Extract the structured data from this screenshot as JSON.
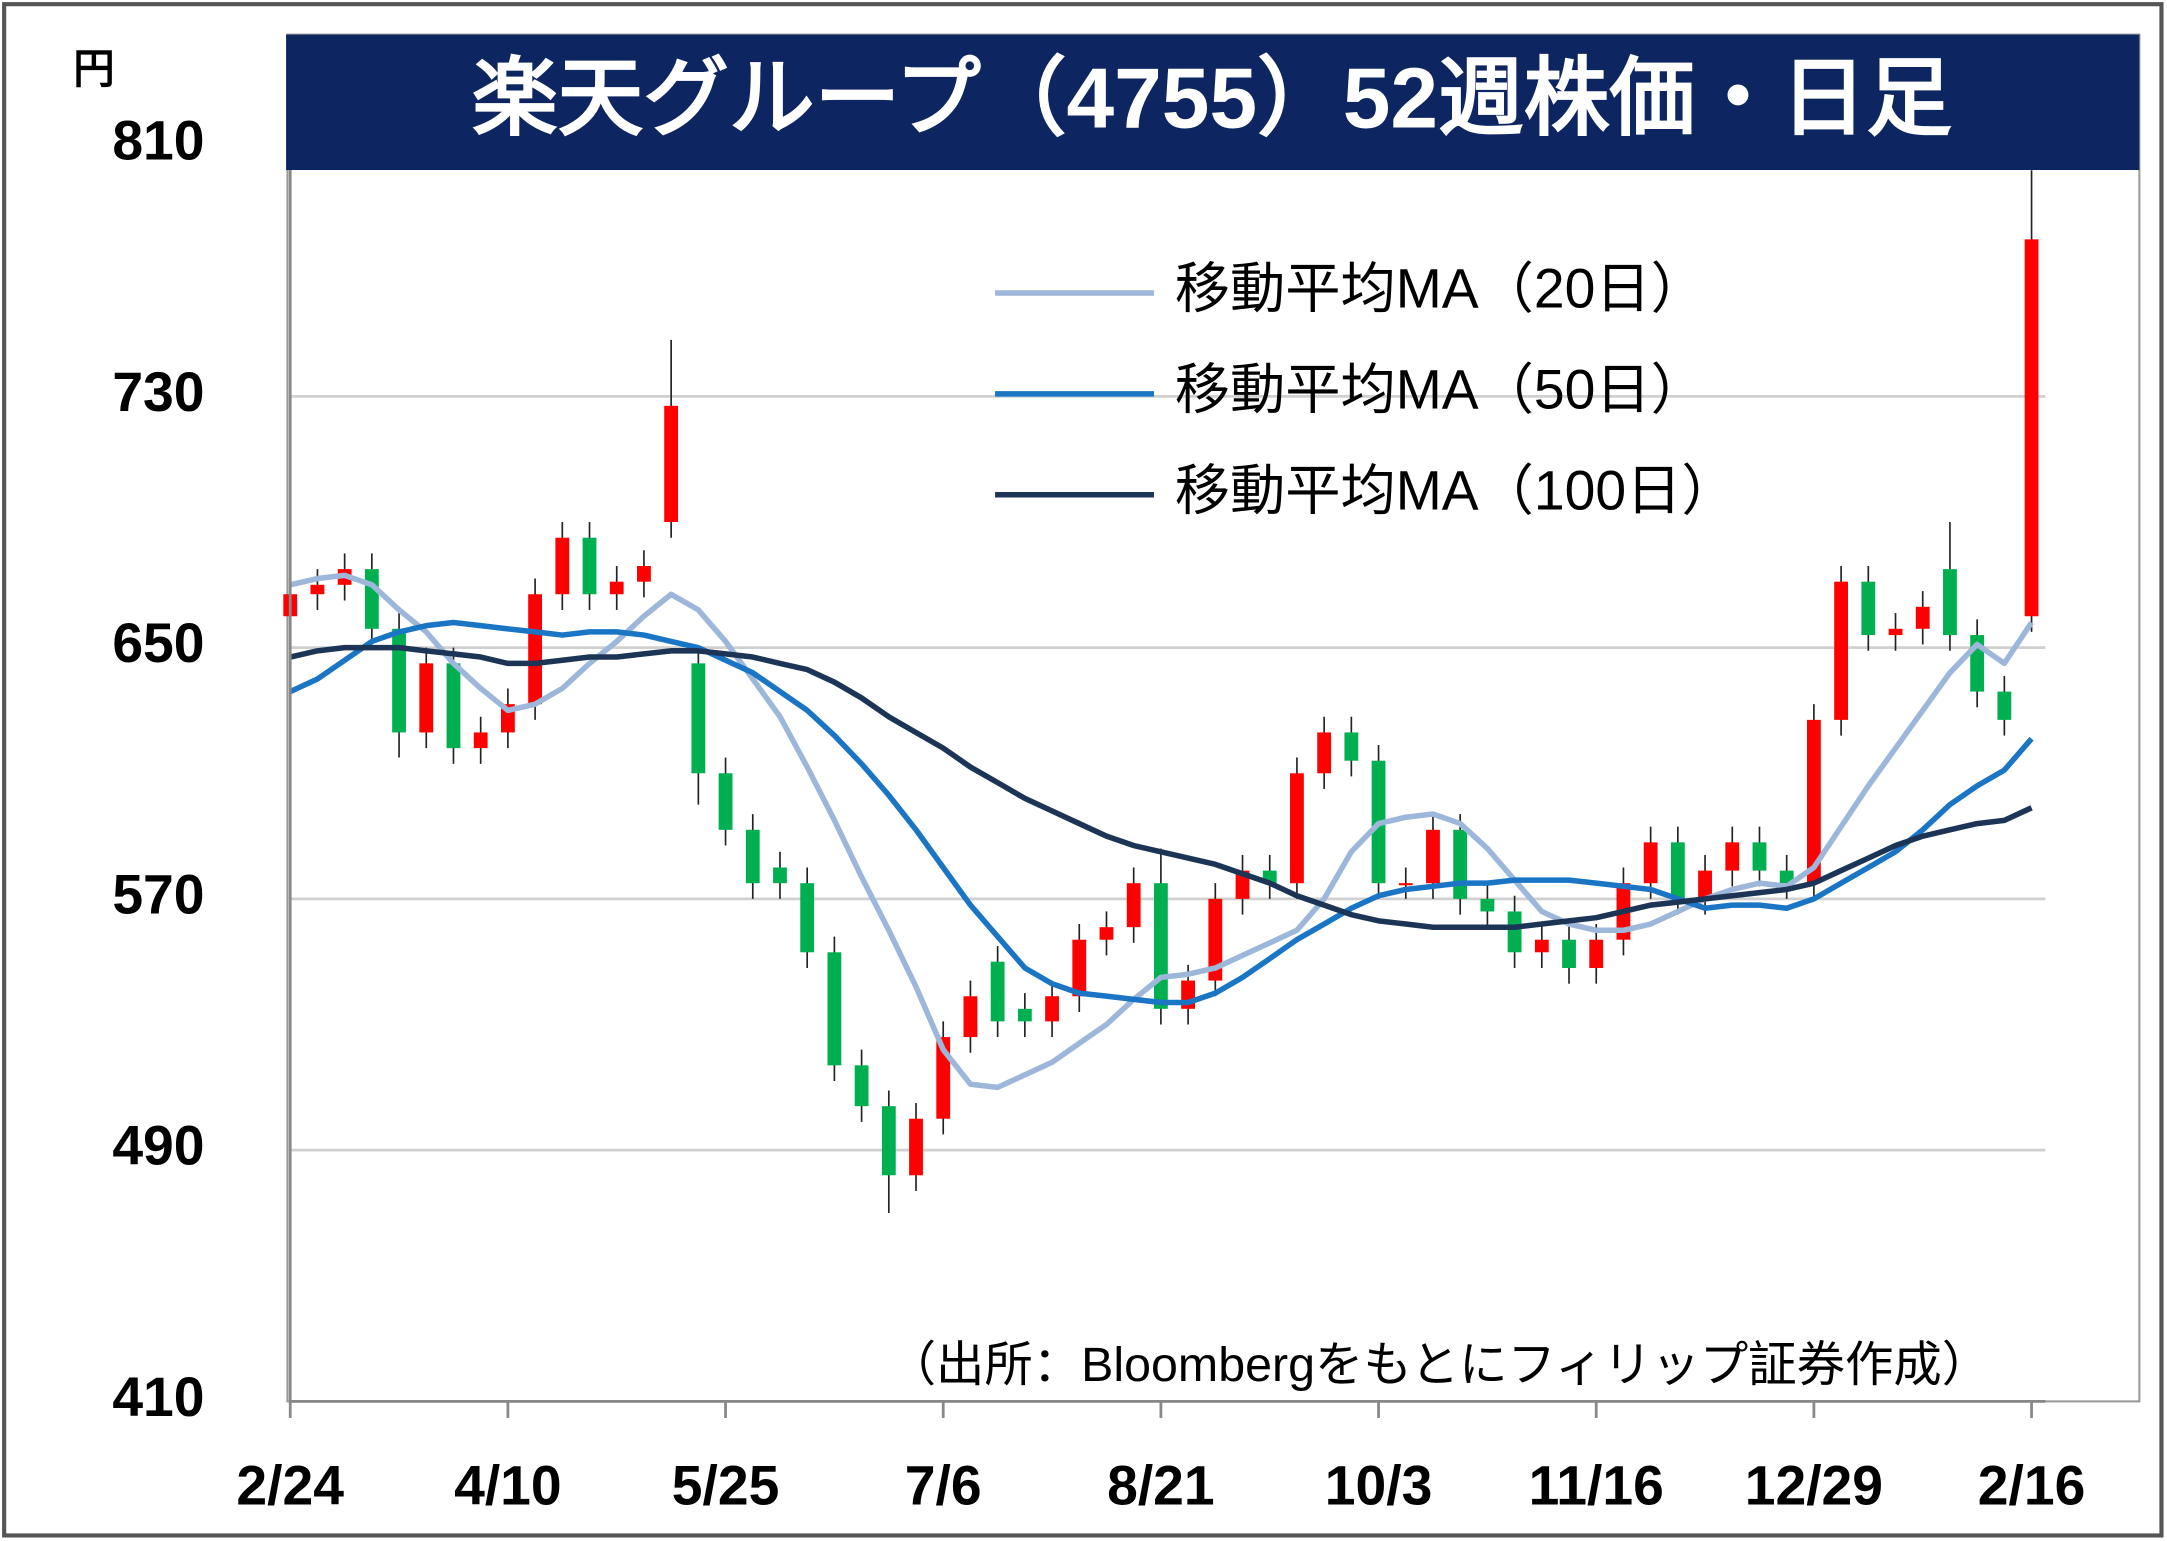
{
  "chart_data": {
    "type": "candlestick",
    "title": "楽天グループ（4755）52週株価・日足",
    "y_unit": "円",
    "source": "（出所：Bloombergをもとにフィリップ証券作成）",
    "categories": [
      "2/24",
      null,
      null,
      null,
      null,
      null,
      null,
      null,
      "4/10",
      null,
      null,
      null,
      null,
      null,
      null,
      null,
      "5/25",
      null,
      null,
      null,
      null,
      null,
      null,
      null,
      "7/6",
      null,
      null,
      null,
      null,
      null,
      null,
      null,
      "8/21",
      null,
      null,
      null,
      null,
      null,
      null,
      null,
      "10/3",
      null,
      null,
      null,
      null,
      null,
      null,
      null,
      "11/16",
      null,
      null,
      null,
      null,
      null,
      null,
      null,
      "12/29",
      null,
      null,
      null,
      null,
      null,
      null,
      null,
      "2/16"
    ],
    "open": [
      660,
      667,
      670,
      675,
      656,
      623,
      645,
      618,
      623,
      632,
      667,
      685,
      667,
      671,
      690,
      645,
      610,
      592,
      580,
      575,
      553,
      517,
      504,
      482,
      500,
      526,
      550,
      535,
      531,
      539,
      557,
      561,
      575,
      535,
      544,
      570,
      579,
      575,
      610,
      623,
      614,
      575,
      575,
      592,
      570,
      566,
      553,
      557,
      548,
      557,
      575,
      588,
      570,
      579,
      588,
      579,
      575,
      627,
      671,
      654,
      656,
      675,
      654,
      636,
      660
    ],
    "high": [
      672,
      675,
      680,
      680,
      661,
      650,
      650,
      628,
      637,
      672,
      690,
      690,
      676,
      681,
      748,
      650,
      615,
      597,
      585,
      580,
      558,
      522,
      509,
      505,
      531,
      544,
      555,
      540,
      544,
      562,
      566,
      580,
      586,
      549,
      575,
      584,
      584,
      615,
      628,
      628,
      619,
      580,
      597,
      597,
      575,
      571,
      562,
      562,
      562,
      580,
      593,
      593,
      584,
      593,
      593,
      584,
      632,
      676,
      676,
      661,
      668,
      690,
      659,
      641,
      802
    ],
    "low": [
      655,
      662,
      665,
      651,
      615,
      618,
      613,
      613,
      618,
      627,
      662,
      662,
      662,
      666,
      685,
      600,
      587,
      570,
      570,
      548,
      512,
      499,
      470,
      477,
      495,
      521,
      526,
      526,
      526,
      534,
      552,
      556,
      530,
      530,
      539,
      565,
      570,
      570,
      605,
      609,
      570,
      570,
      570,
      565,
      561,
      548,
      548,
      543,
      543,
      552,
      570,
      565,
      565,
      574,
      574,
      570,
      570,
      622,
      649,
      649,
      651,
      649,
      631,
      622,
      655
    ],
    "close": [
      667,
      670,
      675,
      656,
      623,
      645,
      618,
      623,
      632,
      667,
      685,
      667,
      671,
      676,
      727,
      610,
      592,
      575,
      575,
      553,
      517,
      504,
      482,
      500,
      526,
      539,
      531,
      531,
      539,
      557,
      561,
      575,
      535,
      544,
      570,
      579,
      575,
      610,
      623,
      614,
      575,
      575,
      592,
      570,
      566,
      553,
      557,
      548,
      557,
      575,
      588,
      570,
      579,
      588,
      579,
      575,
      627,
      671,
      654,
      656,
      663,
      654,
      636,
      627,
      780
    ],
    "up_color": "#ff0000",
    "down_color": "#00b050",
    "series": [
      {
        "name": "移動平均MA（20日）",
        "color": "#9db7da",
        "values": [
          670,
          672,
          673,
          670,
          662,
          655,
          645,
          637,
          630,
          632,
          637,
          645,
          652,
          660,
          667,
          662,
          652,
          640,
          628,
          612,
          595,
          577,
          560,
          542,
          522,
          511,
          510,
          514,
          518,
          524,
          530,
          538,
          545,
          546,
          548,
          552,
          556,
          560,
          570,
          585,
          594,
          596,
          597,
          594,
          586,
          576,
          566,
          562,
          560,
          560,
          562,
          566,
          570,
          573,
          575,
          574,
          580,
          593,
          606,
          618,
          630,
          642,
          651,
          645,
          658
        ]
      },
      {
        "name": "移動平均MA（50日）",
        "color": "#1a75c4",
        "values": [
          636,
          640,
          646,
          652,
          655,
          657,
          658,
          657,
          656,
          655,
          654,
          655,
          655,
          654,
          652,
          650,
          646,
          642,
          636,
          630,
          622,
          613,
          603,
          592,
          580,
          568,
          558,
          548,
          543,
          540,
          539,
          538,
          537,
          537,
          540,
          545,
          551,
          557,
          562,
          567,
          571,
          573,
          574,
          575,
          575,
          576,
          576,
          576,
          575,
          574,
          573,
          570,
          567,
          568,
          568,
          567,
          570,
          575,
          580,
          585,
          592,
          600,
          606,
          611,
          621
        ]
      },
      {
        "name": "移動平均MA（100日）",
        "color": "#1c3557",
        "values": [
          647,
          649,
          650,
          650,
          650,
          649,
          648,
          647,
          645,
          645,
          646,
          647,
          647,
          648,
          649,
          649,
          648,
          647,
          645,
          643,
          639,
          634,
          628,
          623,
          618,
          612,
          607,
          602,
          598,
          594,
          590,
          587,
          585,
          583,
          581,
          578,
          575,
          571,
          568,
          565,
          563,
          562,
          561,
          561,
          561,
          561,
          562,
          563,
          564,
          566,
          568,
          569,
          570,
          571,
          572,
          573,
          575,
          579,
          583,
          587,
          590,
          592,
          594,
          595,
          599
        ]
      }
    ],
    "ylim": [
      410,
      810
    ],
    "yticks": [
      410,
      490,
      570,
      650,
      730,
      810
    ],
    "grid": true,
    "legend": "top-right"
  }
}
